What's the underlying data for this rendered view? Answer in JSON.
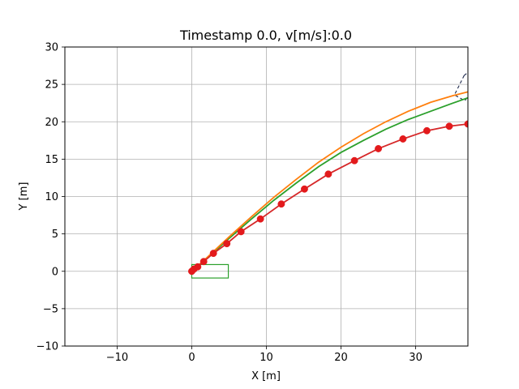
{
  "chart_data": {
    "type": "line",
    "title": "Timestamp  0.0, v[m/s]:0.0",
    "xlabel": "X [m]",
    "ylabel": "Y [m]",
    "xlim": [
      -17,
      37
    ],
    "ylim": [
      -10,
      30
    ],
    "xticks": [
      -10,
      0,
      10,
      20,
      30
    ],
    "yticks": [
      -10,
      -5,
      0,
      5,
      10,
      15,
      20,
      25,
      30
    ],
    "xtick_labels": [
      "−10",
      "0",
      "10",
      "20",
      "30"
    ],
    "ytick_labels": [
      "−10",
      "−5",
      "0",
      "5",
      "10",
      "15",
      "20",
      "25",
      "30"
    ],
    "grid": true,
    "colors": {
      "red": "#d62728",
      "green": "#2ca02c",
      "orange": "#ff7f0e",
      "marker": "#e31a1c",
      "dashed": "#1f2a4d"
    },
    "series": [
      {
        "style": "red-line-markers",
        "color": "#d62728",
        "x": [
          0,
          0.3,
          0.8,
          1.6,
          2.9,
          4.7,
          6.6,
          9.2,
          12.0,
          15.1,
          18.3,
          21.8,
          25.0,
          28.3,
          31.5,
          34.5,
          37.0
        ],
        "y": [
          0,
          0.3,
          0.6,
          1.3,
          2.4,
          3.7,
          5.3,
          7.0,
          9.0,
          11.0,
          13.0,
          14.8,
          16.4,
          17.7,
          18.8,
          19.4,
          19.7
        ]
      },
      {
        "style": "green-line",
        "color": "#2ca02c",
        "x": [
          0,
          2,
          5,
          8,
          11,
          14,
          17,
          20,
          23,
          26,
          29,
          32,
          35,
          37
        ],
        "y": [
          0,
          1.7,
          4.4,
          7.0,
          9.5,
          11.8,
          14.0,
          15.9,
          17.5,
          19.0,
          20.3,
          21.4,
          22.5,
          23.2
        ]
      },
      {
        "style": "orange-line",
        "color": "#ff7f0e",
        "x": [
          0,
          2,
          5,
          8,
          11,
          14,
          17,
          20,
          23,
          26,
          29,
          32,
          35,
          37
        ],
        "y": [
          0,
          1.8,
          4.6,
          7.3,
          9.9,
          12.3,
          14.6,
          16.6,
          18.4,
          20.0,
          21.4,
          22.6,
          23.5,
          24.0
        ]
      }
    ],
    "vehicle_box": {
      "color": "#2ca02c",
      "x": [
        0,
        4.9
      ],
      "y": [
        -0.9,
        0.9
      ]
    },
    "dashed_outline": {
      "color": "#1f2a4d",
      "x": [
        36.5,
        35.2,
        36.6,
        37.5,
        37.5,
        36.5
      ],
      "y": [
        26.2,
        23.6,
        22.8,
        24.2,
        27.0,
        26.2
      ]
    }
  }
}
